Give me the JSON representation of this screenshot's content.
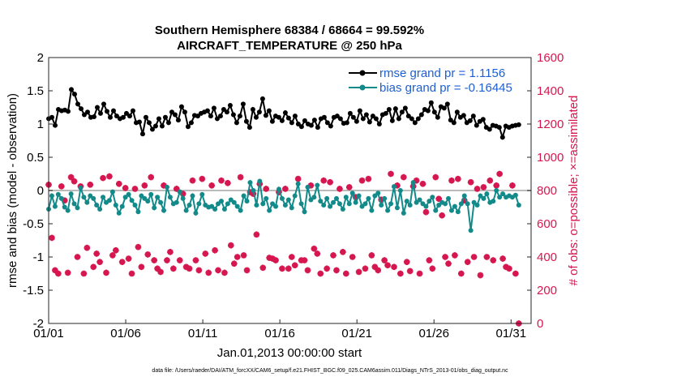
{
  "chart_data": {
    "type": "line",
    "title_line1": "Southern Hemisphere 68384 / 68664 = 99.592%",
    "title_line2": "AIRCRAFT_TEMPERATURE @ 250 hPa",
    "xlabel": "Jan.01,2013 00:00:00 start",
    "ylabel_left": "rmse and bias (model - observation)",
    "ylabel_right": "# of obs: o=possible; ×=assimilated",
    "xlim": [
      0,
      31.3
    ],
    "ylim_left": [
      -2,
      2
    ],
    "ylim_right": [
      0,
      1600
    ],
    "x_ticks": [
      0,
      5,
      10,
      15,
      20,
      25,
      30
    ],
    "x_tick_labels": [
      "01/01",
      "01/06",
      "01/11",
      "01/16",
      "01/21",
      "01/26",
      "01/31"
    ],
    "y_ticks_left": [
      -2,
      -1.5,
      -1,
      -0.5,
      0,
      0.5,
      1,
      1.5,
      2
    ],
    "y_tick_labels_left": [
      "-2",
      "-1.5",
      "-1",
      "-0.5",
      "0",
      "0.5",
      "1",
      "1.5",
      "2"
    ],
    "y_ticks_right": [
      0,
      200,
      400,
      600,
      800,
      1000,
      1200,
      1400,
      1600
    ],
    "y_tick_labels_right": [
      "0",
      "200",
      "400",
      "600",
      "800",
      "1000",
      "1200",
      "1400",
      "1600"
    ],
    "legend": [
      {
        "label": "rmse grand pr = 1.1156",
        "color": "#000000"
      },
      {
        "label": "bias grand pr = -0.16445",
        "color": "#138a8a"
      }
    ],
    "series": [
      {
        "name": "rmse",
        "color": "#000000",
        "values": [
          1.08,
          1.1,
          0.98,
          1.22,
          1.2,
          1.21,
          1.19,
          1.52,
          1.45,
          1.3,
          1.23,
          1.14,
          1.18,
          1.1,
          1.11,
          1.25,
          1.16,
          1.3,
          1.19,
          1.1,
          1.2,
          1.12,
          1.08,
          1.1,
          1.16,
          1.12,
          1.2,
          1.02,
          1.03,
          0.85,
          1.1,
          1.02,
          0.92,
          0.97,
          1.08,
          0.97,
          1.1,
          1.02,
          1.18,
          1.14,
          1.06,
          1.26,
          1.18,
          0.96,
          1.02,
          1.13,
          1.12,
          1.16,
          1.18,
          1.2,
          1.12,
          1.24,
          1.08,
          1.12,
          1.22,
          1.18,
          1.28,
          1.14,
          1.02,
          1.12,
          1.3,
          1.04,
          0.95,
          1.22,
          1.1,
          1.18,
          1.38,
          1.13,
          1.2,
          1.04,
          1.12,
          1.1,
          1.05,
          1.17,
          1.09,
          1.02,
          1.12,
          1.0,
          0.96,
          1.05,
          1.0,
          0.98,
          1.06,
          0.95,
          1.08,
          1.1,
          1.02,
          0.97,
          1.1,
          1.12,
          1.08,
          1.01,
          1.02,
          1.16,
          1.1,
          1.04,
          1.2,
          1.08,
          1.14,
          1.03,
          1.12,
          1.08,
          1.0,
          1.14,
          1.16,
          1.22,
          1.05,
          1.23,
          1.08,
          1.18,
          1.24,
          1.12,
          1.08,
          1.02,
          1.08,
          1.14,
          1.22,
          1.2,
          1.32,
          1.18,
          1.1,
          1.26,
          1.24,
          1.3,
          1.06,
          1.02,
          1.18,
          1.1,
          1.13,
          1.02,
          1.05,
          1.12,
          0.98,
          1.04,
          1.07,
          0.95,
          0.92,
          0.98,
          0.97,
          0.95,
          0.8,
          0.97,
          0.95,
          0.97,
          0.98,
          0.99
        ]
      },
      {
        "name": "bias",
        "color": "#138a8a",
        "values": [
          -0.28,
          -0.08,
          -0.24,
          -0.06,
          -0.12,
          -0.25,
          -0.3,
          -0.05,
          -0.2,
          -0.26,
          0.04,
          -0.1,
          -0.18,
          -0.08,
          -0.12,
          -0.22,
          -0.28,
          -0.1,
          -0.18,
          -0.15,
          -0.02,
          -0.22,
          -0.34,
          -0.24,
          -0.1,
          -0.06,
          -0.15,
          -0.22,
          -0.32,
          -0.08,
          -0.12,
          -0.16,
          -0.06,
          -0.26,
          -0.1,
          -0.18,
          -0.3,
          0.05,
          -0.1,
          -0.2,
          -0.18,
          -0.02,
          -0.12,
          -0.3,
          -0.22,
          -0.08,
          -0.34,
          -0.2,
          -0.06,
          -0.22,
          -0.25,
          -0.24,
          -0.28,
          -0.2,
          -0.16,
          -0.28,
          -0.2,
          -0.14,
          -0.18,
          -0.24,
          -0.3,
          -0.08,
          -0.16,
          0.12,
          0.0,
          -0.22,
          0.14,
          -0.2,
          -0.12,
          -0.3,
          -0.2,
          -0.24,
          0.02,
          -0.12,
          -0.22,
          -0.14,
          -0.26,
          -0.08,
          0.1,
          -0.2,
          -0.32,
          0.05,
          -0.14,
          -0.1,
          0.08,
          -0.16,
          -0.22,
          -0.12,
          -0.24,
          -0.18,
          -0.12,
          -0.2,
          -0.28,
          -0.1,
          -0.2,
          -0.04,
          -0.18,
          -0.08,
          -0.24,
          -0.2,
          -0.12,
          -0.3,
          -0.08,
          -0.04,
          -0.22,
          -0.12,
          -0.3,
          -0.2,
          0.06,
          -0.26,
          0.0,
          -0.34,
          -0.16,
          -0.22,
          0.12,
          -0.18,
          -0.14,
          -0.2,
          -0.24,
          -0.16,
          -0.1,
          -0.3,
          -0.22,
          -0.18,
          -0.2,
          -0.12,
          -0.3,
          -0.24,
          -0.32,
          -0.2,
          -0.08,
          -0.2,
          -0.6,
          -0.18,
          -0.22,
          -0.08,
          -0.12,
          -0.05,
          -0.18,
          -0.16,
          0.0,
          -0.1,
          -0.05,
          -0.1,
          -0.08,
          -0.1,
          -0.07,
          -0.22
        ]
      },
      {
        "name": "obs_assimilated",
        "color": "#d6164f",
        "axis": "right",
        "values": [
          835,
          515,
          320,
          300,
          825,
          740,
          305,
          880,
          855,
          400,
          825,
          300,
          455,
          835,
          340,
          420,
          370,
          875,
          305,
          885,
          410,
          440,
          840,
          370,
          815,
          390,
          300,
          810,
          460,
          340,
          830,
          415,
          880,
          380,
          330,
          310,
          830,
          380,
          430,
          330,
          810,
          380,
          780,
          340,
          330,
          860,
          380,
          320,
          870,
          420,
          305,
          830,
          440,
          320,
          860,
          305,
          845,
          470,
          360,
          400,
          880,
          410,
          320,
          790,
          780,
          535,
          840,
          335,
          810,
          395,
          390,
          380,
          790,
          330,
          810,
          330,
          400,
          350,
          870,
          380,
          380,
          320,
          830,
          450,
          420,
          300,
          860,
          330,
          850,
          410,
          320,
          810,
          430,
          300,
          820,
          400,
          760,
          310,
          860,
          330,
          870,
          410,
          340,
          320,
          745,
          380,
          350,
          900,
          340,
          830,
          300,
          880,
          370,
          315,
          825,
          860,
          300,
          840,
          670,
          380,
          330,
          880,
          750,
          650,
          400,
          360,
          860,
          410,
          870,
          300,
          740,
          370,
          850,
          400,
          810,
          290,
          820,
          400,
          860,
          380,
          830,
          900,
          390,
          340,
          330,
          830,
          300,
          0
        ]
      }
    ]
  },
  "footer": "data file: /Users/raeder/DAI/ATM_forcXX/CAM6_setup/f.e21.FHIST_BGC.f09_025.CAM6assim.011/Diags_NTrS_2013-01/obs_diag_output.nc"
}
